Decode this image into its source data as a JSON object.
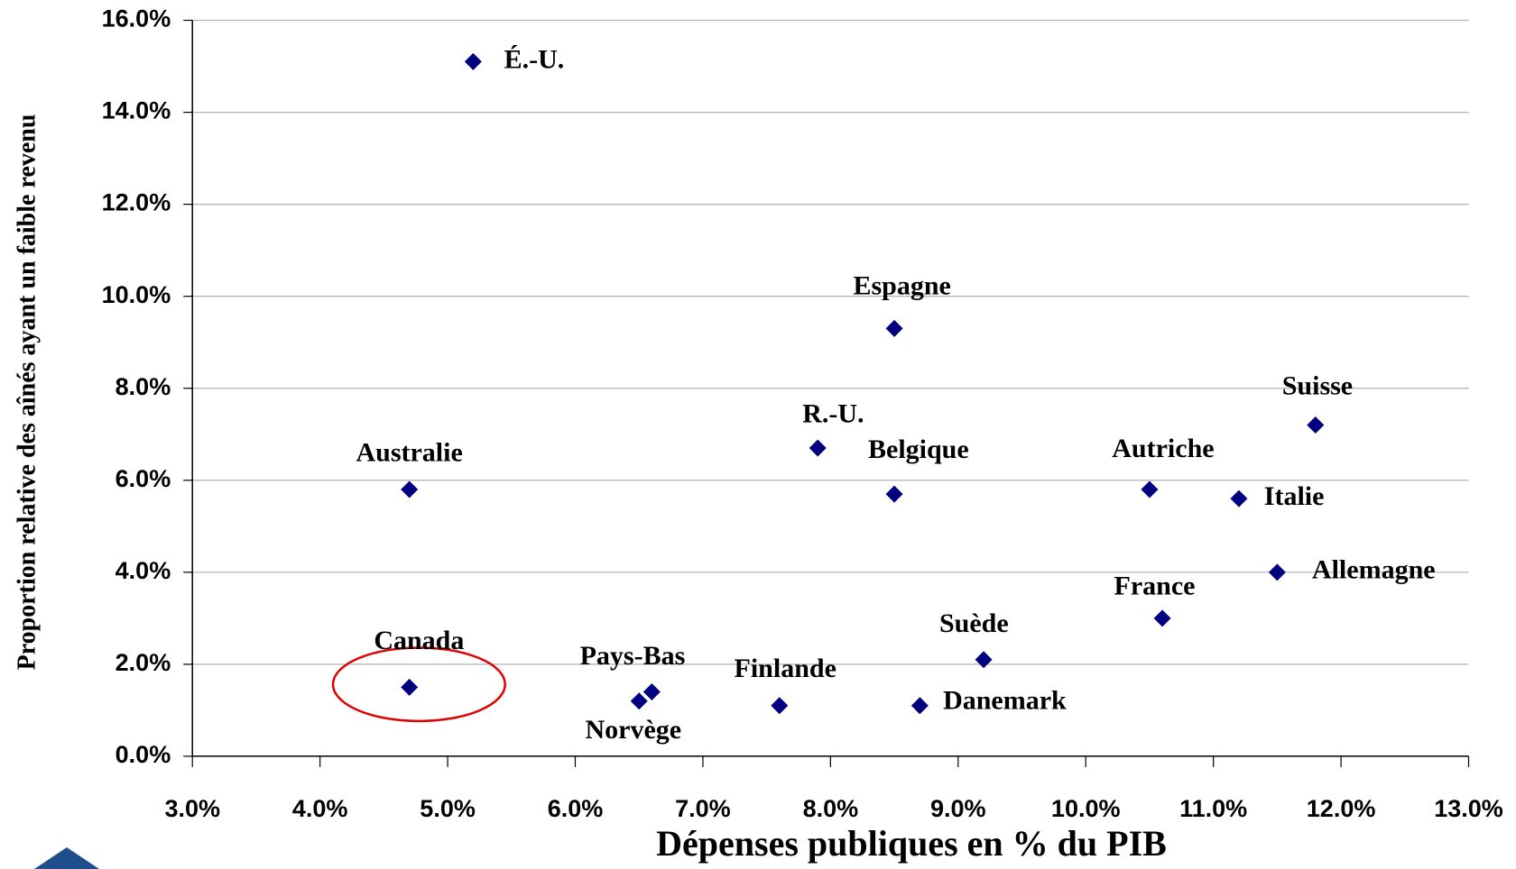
{
  "chart_data": {
    "type": "scatter",
    "x_label": "Dépenses publiques en % du PIB",
    "y_label": "Proportion relative des aînés ayant un faible revenu",
    "labels": [
      "É.-U.",
      "Espagne",
      "R.-U.",
      "Belgique",
      "Australie",
      "Canada",
      "Pays-Bas",
      "Norvège",
      "Finlande",
      "Danemark",
      "Suède",
      "France",
      "Autriche",
      "Italie",
      "Allemagne",
      "Suisse"
    ],
    "x": [
      5.2,
      8.5,
      7.9,
      8.5,
      4.7,
      4.7,
      6.6,
      6.5,
      7.6,
      8.7,
      9.2,
      10.6,
      10.5,
      11.2,
      11.5,
      11.8
    ],
    "values": [
      15.1,
      9.3,
      6.7,
      5.7,
      5.8,
      1.5,
      1.4,
      1.2,
      1.1,
      1.1,
      2.1,
      3.0,
      5.8,
      5.6,
      4.0,
      7.2
    ],
    "color": "#000080",
    "xlim": [
      3,
      13
    ],
    "xticks": [
      {
        "value": 3,
        "label": "3.0%"
      },
      {
        "value": 4,
        "label": "4.0%"
      },
      {
        "value": 5,
        "label": "5.0%"
      },
      {
        "value": 6,
        "label": "6.0%"
      },
      {
        "value": 7,
        "label": "7.0%"
      },
      {
        "value": 8,
        "label": "8.0%"
      },
      {
        "value": 9,
        "label": "9.0%"
      },
      {
        "value": 10,
        "label": "10.0%"
      },
      {
        "value": 11,
        "label": "11.0%"
      },
      {
        "value": 12,
        "label": "12.0%"
      },
      {
        "value": 13,
        "label": "13.0%"
      }
    ],
    "ylim": [
      0,
      16
    ],
    "yticks": [
      {
        "value": 0,
        "label": "0.0%"
      },
      {
        "value": 2,
        "label": "2.0%"
      },
      {
        "value": 4,
        "label": "4.0%"
      },
      {
        "value": 6,
        "label": "6.0%"
      },
      {
        "value": 8,
        "label": "8.0%"
      },
      {
        "value": 10,
        "label": "10.0%"
      },
      {
        "value": 12,
        "label": "12.0%"
      },
      {
        "value": 14,
        "label": "14.0%"
      },
      {
        "value": 16,
        "label": "16.0%"
      }
    ],
    "grid": true
  }
}
